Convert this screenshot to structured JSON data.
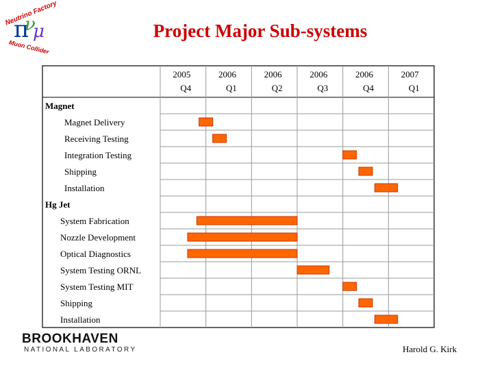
{
  "slide": {
    "title": "Project Major Sub-systems",
    "logo_text": [
      "Neutrino Factory",
      "Muon Collider"
    ],
    "institution": {
      "name": "BROOKHAVEN",
      "subtitle": "NATIONAL LABORATORY"
    },
    "author": "Harold G. Kirk"
  },
  "colors": {
    "bar": "#ff6600",
    "bar_border": "#cc3300",
    "title": "#cc0000",
    "grid": "#999999"
  },
  "chart_data": {
    "type": "gantt",
    "columns": [
      {
        "year": "2005",
        "quarter": "Q4"
      },
      {
        "year": "2006",
        "quarter": "Q1"
      },
      {
        "year": "2006",
        "quarter": "Q2"
      },
      {
        "year": "2006",
        "quarter": "Q3"
      },
      {
        "year": "2006",
        "quarter": "Q4"
      },
      {
        "year": "2007",
        "quarter": "Q1"
      }
    ],
    "groups": [
      {
        "name": "Magnet",
        "tasks": [
          {
            "name": "Magnet Delivery",
            "start": 0.85,
            "end": 1.15
          },
          {
            "name": "Receiving Testing",
            "start": 1.15,
            "end": 1.45
          },
          {
            "name": "Integration Testing",
            "start": 4.0,
            "end": 4.3
          },
          {
            "name": "Shipping",
            "start": 4.35,
            "end": 4.65
          },
          {
            "name": "Installation",
            "start": 4.7,
            "end": 5.2
          }
        ]
      },
      {
        "name": "Hg Jet",
        "tasks": [
          {
            "name": "System Fabrication",
            "start": 0.8,
            "end": 3.0
          },
          {
            "name": "Nozzle Development",
            "start": 0.6,
            "end": 3.0
          },
          {
            "name": "Optical Diagnostics",
            "start": 0.6,
            "end": 3.0
          },
          {
            "name": "System Testing ORNL",
            "start": 3.0,
            "end": 3.7
          },
          {
            "name": "System Testing MIT",
            "start": 4.0,
            "end": 4.3
          },
          {
            "name": "Shipping",
            "start": 4.35,
            "end": 4.65
          },
          {
            "name": "Installation",
            "start": 4.7,
            "end": 5.2
          }
        ]
      }
    ]
  }
}
